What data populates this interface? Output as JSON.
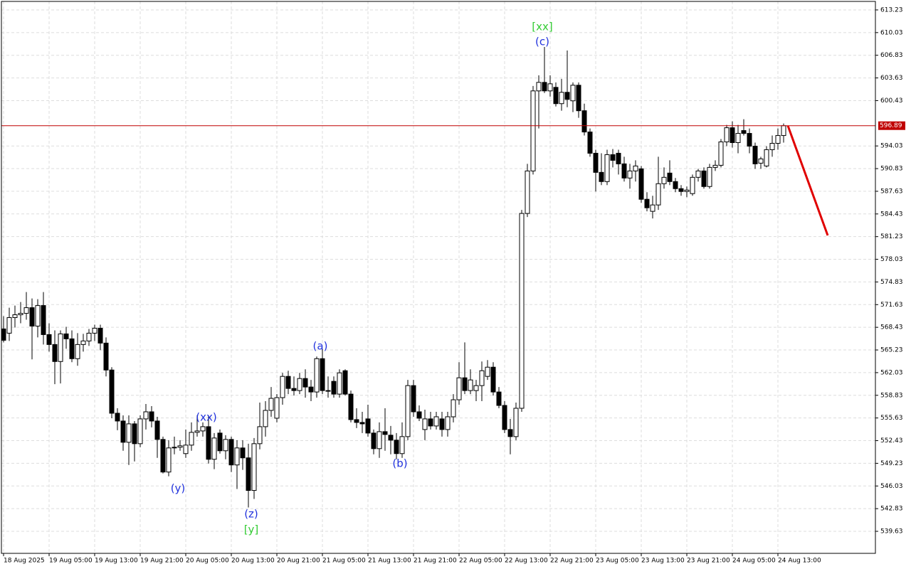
{
  "chart_data": {
    "type": "candlestick",
    "ylim": [
      536.52,
      614.43
    ],
    "yticks": [
      613.23,
      610.03,
      606.83,
      603.63,
      600.43,
      594.03,
      590.83,
      587.63,
      584.43,
      581.23,
      578.03,
      574.83,
      571.63,
      568.43,
      565.23,
      562.03,
      558.83,
      555.63,
      552.43,
      549.23,
      546.03,
      542.83,
      539.63
    ],
    "xlim": [
      -0.375,
      153.125
    ],
    "xticks": [
      {
        "value": 0,
        "label": "18 Aug 2025"
      },
      {
        "value": 8,
        "label": "19 Aug 05:00"
      },
      {
        "value": 16,
        "label": "19 Aug 13:00"
      },
      {
        "value": 24,
        "label": "19 Aug 21:00"
      },
      {
        "value": 32,
        "label": "20 Aug 05:00"
      },
      {
        "value": 40,
        "label": "20 Aug 13:00"
      },
      {
        "value": 48,
        "label": "20 Aug 21:00"
      },
      {
        "value": 56,
        "label": "21 Aug 05:00"
      },
      {
        "value": 64,
        "label": "21 Aug 13:00"
      },
      {
        "value": 72,
        "label": "21 Aug 21:00"
      },
      {
        "value": 80,
        "label": "22 Aug 05:00"
      },
      {
        "value": 88,
        "label": "22 Aug 13:00"
      },
      {
        "value": 96,
        "label": "22 Aug 21:00"
      },
      {
        "value": 104,
        "label": "23 Aug 05:00"
      },
      {
        "value": 112,
        "label": "23 Aug 13:00"
      },
      {
        "value": 120,
        "label": "23 Aug 21:00"
      },
      {
        "value": 128,
        "label": "24 Aug 05:00"
      },
      {
        "value": 136,
        "label": "24 Aug 13:00"
      }
    ],
    "grid": true,
    "up_color": "#ffffff",
    "down_color": "#000000",
    "current_price": 596.89,
    "current_price_color": "#c00000",
    "candles": [
      [
        568.2,
        570.0,
        566.3,
        566.6
      ],
      [
        567.6,
        571.2,
        566.5,
        569.8
      ],
      [
        569.8,
        571.5,
        568.4,
        570.2
      ],
      [
        570.2,
        572.0,
        569.0,
        570.4
      ],
      [
        570.4,
        573.4,
        569.5,
        571.2
      ],
      [
        571.2,
        572.5,
        563.9,
        568.6
      ],
      [
        568.6,
        572.4,
        567.0,
        571.5
      ],
      [
        571.5,
        573.4,
        566.0,
        567.4
      ],
      [
        567.4,
        569.0,
        565.0,
        566.0
      ],
      [
        566.0,
        568.0,
        560.4,
        563.6
      ],
      [
        563.6,
        568.0,
        560.5,
        567.5
      ],
      [
        567.5,
        568.5,
        565.4,
        566.8
      ],
      [
        566.8,
        568.0,
        563.5,
        564.0
      ],
      [
        564.0,
        567.6,
        563.0,
        566.0
      ],
      [
        566.0,
        567.5,
        565.0,
        566.5
      ],
      [
        566.5,
        568.2,
        565.8,
        567.6
      ],
      [
        567.6,
        568.8,
        566.5,
        568.3
      ],
      [
        568.3,
        568.8,
        565.2,
        566.2
      ],
      [
        566.2,
        567.0,
        561.5,
        562.4
      ],
      [
        562.4,
        562.8,
        555.6,
        556.3
      ],
      [
        556.3,
        557.0,
        553.9,
        555.2
      ],
      [
        555.2,
        556.0,
        551.0,
        552.2
      ],
      [
        552.2,
        556.0,
        549.0,
        554.8
      ],
      [
        554.8,
        555.2,
        549.5,
        552.0
      ],
      [
        552.0,
        556.0,
        551.5,
        555.5
      ],
      [
        555.5,
        557.6,
        554.0,
        556.5
      ],
      [
        556.5,
        557.3,
        554.3,
        555.2
      ],
      [
        555.2,
        555.8,
        550.0,
        552.6
      ],
      [
        552.6,
        553.0,
        547.8,
        548.0
      ],
      [
        548.0,
        552.5,
        547.4,
        551.4
      ],
      [
        551.4,
        553.0,
        550.5,
        551.5
      ],
      [
        551.5,
        552.5,
        551.0,
        551.7
      ],
      [
        550.6,
        554.0,
        550.0,
        551.8
      ],
      [
        551.8,
        555.0,
        551.0,
        553.6
      ],
      [
        553.6,
        556.0,
        553.0,
        553.8
      ],
      [
        553.8,
        555.0,
        553.0,
        554.4
      ],
      [
        554.4,
        556.0,
        549.2,
        549.8
      ],
      [
        549.8,
        553.5,
        548.4,
        552.8
      ],
      [
        553.5,
        554.0,
        550.6,
        551.0
      ],
      [
        551.0,
        553.2,
        549.8,
        552.6
      ],
      [
        552.6,
        553.0,
        548.0,
        549.0
      ],
      [
        549.0,
        552.5,
        545.6,
        551.4
      ],
      [
        551.4,
        552.5,
        548.3,
        550.0
      ],
      [
        550.0,
        552.0,
        543.0,
        545.4
      ],
      [
        545.4,
        552.8,
        544.2,
        552.0
      ],
      [
        552.0,
        557.8,
        551.2,
        554.4
      ],
      [
        554.4,
        558.0,
        553.0,
        556.7
      ],
      [
        556.7,
        560.0,
        555.8,
        558.4
      ],
      [
        555.6,
        559.0,
        555.0,
        558.5
      ],
      [
        558.5,
        562.0,
        557.5,
        561.5
      ],
      [
        561.5,
        562.3,
        559.0,
        559.8
      ],
      [
        559.8,
        561.5,
        558.8,
        559.5
      ],
      [
        559.5,
        562.0,
        559.0,
        561.2
      ],
      [
        561.2,
        562.5,
        558.5,
        560.0
      ],
      [
        560.0,
        561.0,
        558.0,
        559.3
      ],
      [
        559.3,
        564.3,
        558.5,
        564.0
      ],
      [
        564.0,
        565.4,
        559.0,
        559.5
      ],
      [
        559.5,
        561.5,
        558.5,
        559.4
      ],
      [
        560.8,
        561.5,
        558.5,
        559.0
      ],
      [
        559.0,
        562.5,
        558.5,
        562.0
      ],
      [
        562.3,
        562.5,
        558.8,
        559.0
      ],
      [
        559.0,
        559.5,
        555.0,
        555.4
      ],
      [
        555.4,
        557.0,
        554.2,
        555.0
      ],
      [
        555.0,
        556.5,
        553.5,
        554.8
      ],
      [
        555.5,
        557.5,
        553.0,
        553.5
      ],
      [
        553.5,
        554.0,
        550.5,
        551.3
      ],
      [
        551.3,
        555.0,
        550.0,
        553.7
      ],
      [
        553.7,
        557.0,
        551.0,
        553.3
      ],
      [
        553.2,
        554.5,
        550.5,
        552.5
      ],
      [
        552.5,
        553.5,
        549.8,
        550.6
      ],
      [
        550.6,
        555.0,
        550.0,
        553.0
      ],
      [
        553.0,
        561.0,
        552.5,
        560.2
      ],
      [
        560.2,
        561.0,
        555.8,
        556.5
      ],
      [
        556.5,
        557.4,
        555.2,
        555.6
      ],
      [
        554.0,
        556.8,
        552.5,
        555.5
      ],
      [
        555.5,
        556.5,
        554.0,
        554.5
      ],
      [
        554.5,
        556.5,
        554.0,
        555.8
      ],
      [
        555.5,
        556.5,
        553.0,
        554.0
      ],
      [
        554.0,
        556.5,
        553.0,
        555.8
      ],
      [
        555.8,
        559.0,
        555.0,
        558.2
      ],
      [
        558.2,
        563.5,
        557.5,
        561.3
      ],
      [
        561.3,
        566.3,
        559.0,
        559.5
      ],
      [
        559.5,
        562.5,
        559.0,
        561.0
      ],
      [
        559.5,
        561.0,
        558.0,
        560.2
      ],
      [
        560.2,
        563.6,
        558.0,
        562.3
      ],
      [
        561.5,
        563.8,
        561.0,
        562.8
      ],
      [
        562.8,
        563.5,
        558.8,
        559.3
      ],
      [
        559.3,
        560.0,
        557.0,
        557.4
      ],
      [
        557.4,
        558.0,
        553.5,
        554.0
      ],
      [
        554.0,
        555.5,
        550.5,
        553.0
      ],
      [
        553.0,
        557.8,
        552.5,
        557.0
      ],
      [
        557.0,
        585.0,
        556.5,
        584.5
      ],
      [
        584.5,
        591.5,
        584.0,
        590.5
      ],
      [
        590.5,
        602.5,
        590.0,
        601.8
      ],
      [
        601.8,
        604.0,
        596.5,
        603.0
      ],
      [
        603.0,
        608.0,
        601.5,
        601.8
      ],
      [
        601.8,
        604.0,
        601.0,
        602.8
      ],
      [
        602.3,
        603.0,
        599.6,
        600.0
      ],
      [
        600.0,
        603.5,
        599.0,
        601.6
      ],
      [
        601.6,
        607.5,
        599.5,
        600.6
      ],
      [
        600.4,
        603.0,
        598.8,
        602.6
      ],
      [
        602.6,
        603.0,
        598.0,
        599.0
      ],
      [
        599.0,
        600.0,
        595.5,
        596.0
      ],
      [
        596.0,
        596.5,
        592.5,
        593.0
      ],
      [
        593.0,
        593.5,
        587.6,
        590.3
      ],
      [
        590.3,
        593.0,
        588.5,
        589.0
      ],
      [
        589.0,
        593.5,
        588.5,
        592.8
      ],
      [
        592.8,
        593.6,
        591.0,
        592.0
      ],
      [
        593.0,
        593.5,
        590.0,
        591.5
      ],
      [
        591.5,
        592.5,
        589.0,
        589.5
      ],
      [
        589.5,
        591.5,
        588.0,
        590.5
      ],
      [
        590.5,
        592.0,
        589.0,
        591.2
      ],
      [
        590.8,
        591.2,
        586.0,
        586.5
      ],
      [
        586.5,
        587.5,
        584.8,
        585.3
      ],
      [
        584.8,
        587.0,
        583.8,
        585.7
      ],
      [
        585.7,
        592.5,
        585.0,
        588.7
      ],
      [
        588.7,
        591.0,
        588.0,
        589.6
      ],
      [
        590.2,
        592.0,
        588.5,
        589.0
      ],
      [
        589.0,
        589.5,
        587.5,
        588.0
      ],
      [
        588.0,
        588.5,
        587.0,
        587.6
      ],
      [
        587.6,
        588.3,
        586.8,
        587.8
      ],
      [
        587.3,
        590.0,
        587.0,
        589.6
      ],
      [
        589.6,
        590.8,
        589.0,
        590.5
      ],
      [
        590.5,
        591.0,
        588.0,
        588.3
      ],
      [
        588.3,
        591.5,
        588.0,
        591.0
      ],
      [
        591.0,
        592.0,
        590.5,
        591.3
      ],
      [
        591.3,
        595.0,
        591.0,
        594.6
      ],
      [
        594.6,
        597.0,
        594.0,
        596.6
      ],
      [
        596.6,
        597.5,
        593.8,
        594.5
      ],
      [
        594.5,
        597.0,
        593.0,
        595.8
      ],
      [
        596.2,
        597.8,
        595.5,
        595.8
      ],
      [
        595.8,
        596.5,
        593.0,
        594.0
      ],
      [
        594.0,
        594.5,
        590.8,
        591.5
      ],
      [
        591.6,
        592.5,
        590.8,
        592.2
      ],
      [
        591.2,
        594.0,
        591.0,
        593.5
      ],
      [
        593.5,
        595.5,
        592.5,
        594.4
      ],
      [
        594.4,
        596.5,
        593.5,
        595.5
      ],
      [
        595.5,
        597.2,
        594.5,
        596.89
      ]
    ],
    "forecast": {
      "color": "#e00000",
      "x": [
        137.75,
        144.75
      ],
      "values": [
        596.89,
        581.4
      ]
    },
    "annotations": [
      {
        "text": "[xx]",
        "color": "#33cc33"
      },
      {
        "text": "(c)",
        "color": "#2233dd"
      },
      {
        "text": "(xx)",
        "color": "#2233dd"
      },
      {
        "text": "(y)",
        "color": "#2233dd"
      },
      {
        "text": "(z)",
        "color": "#2233dd"
      },
      {
        "text": "[y]",
        "color": "#33cc33"
      },
      {
        "text": "(a)",
        "color": "#2233dd"
      },
      {
        "text": "(b)",
        "color": "#2233dd"
      }
    ]
  }
}
